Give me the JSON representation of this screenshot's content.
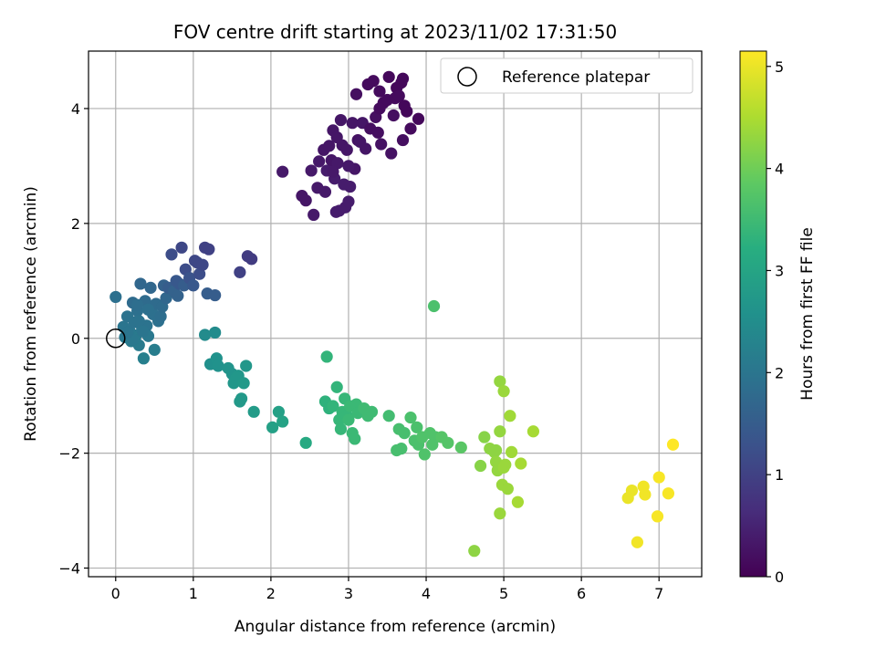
{
  "chart_data": {
    "type": "scatter",
    "title": "FOV centre drift starting at 2023/11/02 17:31:50",
    "xlabel": "Angular distance from reference (arcmin)",
    "ylabel": "Rotation from reference (arcmin)",
    "xlim": [
      -0.35,
      7.55
    ],
    "ylim": [
      -4.15,
      5.0
    ],
    "x_ticks": [
      0,
      1,
      2,
      3,
      4,
      5,
      6,
      7
    ],
    "y_ticks": [
      -4,
      -2,
      0,
      2,
      4
    ],
    "grid": true,
    "legend": {
      "placement": "top-right",
      "entries": [
        "Reference platepar"
      ]
    },
    "reference_point": {
      "x": 0,
      "y": 0,
      "label": "Reference platepar"
    },
    "colorbar": {
      "label": "Hours from first FF file",
      "colormap": "viridis",
      "range": [
        0,
        5.15
      ],
      "ticks": [
        0,
        1,
        2,
        3,
        4,
        5
      ]
    },
    "points": [
      [
        2.15,
        2.9,
        0.35
      ],
      [
        2.4,
        2.48,
        0.3
      ],
      [
        2.45,
        2.4,
        0.3
      ],
      [
        2.55,
        2.15,
        0.35
      ],
      [
        2.52,
        2.92,
        0.35
      ],
      [
        2.6,
        2.62,
        0.35
      ],
      [
        2.62,
        3.08,
        0.35
      ],
      [
        2.68,
        3.28,
        0.3
      ],
      [
        2.7,
        2.55,
        0.35
      ],
      [
        2.72,
        2.92,
        0.4
      ],
      [
        2.75,
        3.35,
        0.3
      ],
      [
        2.78,
        3.1,
        0.3
      ],
      [
        2.8,
        3.62,
        0.3
      ],
      [
        2.82,
        2.78,
        0.4
      ],
      [
        2.84,
        2.2,
        0.4
      ],
      [
        2.86,
        3.05,
        0.35
      ],
      [
        2.88,
        2.22,
        0.4
      ],
      [
        2.9,
        3.8,
        0.3
      ],
      [
        2.92,
        3.36,
        0.3
      ],
      [
        2.94,
        2.68,
        0.4
      ],
      [
        2.96,
        2.28,
        0.4
      ],
      [
        2.98,
        3.28,
        0.3
      ],
      [
        3.0,
        2.38,
        0.4
      ],
      [
        3.02,
        2.64,
        0.4
      ],
      [
        3.05,
        3.75,
        0.3
      ],
      [
        3.08,
        2.95,
        0.3
      ],
      [
        3.1,
        4.25,
        0.2
      ],
      [
        3.12,
        3.45,
        0.25
      ],
      [
        3.15,
        3.42,
        0.3
      ],
      [
        3.18,
        3.75,
        0.3
      ],
      [
        3.22,
        3.3,
        0.3
      ],
      [
        3.25,
        4.42,
        0.15
      ],
      [
        3.28,
        3.65,
        0.2
      ],
      [
        3.32,
        4.48,
        0.15
      ],
      [
        3.35,
        3.85,
        0.2
      ],
      [
        3.38,
        3.58,
        0.2
      ],
      [
        3.4,
        4.3,
        0.15
      ],
      [
        3.42,
        3.38,
        0.25
      ],
      [
        3.45,
        4.1,
        0.15
      ],
      [
        3.5,
        4.15,
        0.15
      ],
      [
        3.52,
        4.55,
        0.1
      ],
      [
        3.55,
        3.22,
        0.25
      ],
      [
        3.58,
        3.88,
        0.2
      ],
      [
        3.6,
        4.18,
        0.15
      ],
      [
        3.62,
        4.36,
        0.1
      ],
      [
        3.65,
        4.22,
        0.15
      ],
      [
        3.68,
        4.45,
        0.1
      ],
      [
        3.7,
        3.45,
        0.2
      ],
      [
        3.72,
        4.05,
        0.1
      ],
      [
        3.75,
        3.95,
        0.1
      ],
      [
        3.8,
        3.65,
        0.15
      ],
      [
        3.9,
        3.82,
        0.1
      ],
      [
        2.8,
        2.9,
        0.35
      ],
      [
        3.0,
        3.0,
        0.35
      ],
      [
        2.85,
        3.5,
        0.3
      ],
      [
        3.4,
        4.0,
        0.15
      ],
      [
        3.7,
        4.52,
        0.1
      ],
      [
        0.0,
        0.72,
        1.9
      ],
      [
        0.1,
        0.2,
        2.0
      ],
      [
        0.12,
        0.02,
        2.05
      ],
      [
        0.15,
        0.38,
        1.95
      ],
      [
        0.18,
        0.12,
        2.0
      ],
      [
        0.2,
        -0.05,
        2.1
      ],
      [
        0.22,
        0.62,
        1.8
      ],
      [
        0.24,
        0.28,
        1.95
      ],
      [
        0.26,
        0.05,
        2.05
      ],
      [
        0.28,
        0.48,
        1.9
      ],
      [
        0.3,
        -0.12,
        2.1
      ],
      [
        0.32,
        0.95,
        1.7
      ],
      [
        0.34,
        0.18,
        2.0
      ],
      [
        0.36,
        -0.35,
        2.2
      ],
      [
        0.38,
        0.65,
        1.8
      ],
      [
        0.4,
        0.22,
        1.95
      ],
      [
        0.42,
        0.04,
        2.05
      ],
      [
        0.45,
        0.88,
        1.7
      ],
      [
        0.48,
        0.42,
        1.9
      ],
      [
        0.5,
        -0.2,
        2.15
      ],
      [
        0.52,
        0.6,
        1.8
      ],
      [
        0.55,
        0.3,
        1.9
      ],
      [
        0.58,
        0.38,
        1.85
      ],
      [
        0.6,
        0.55,
        1.8
      ],
      [
        0.62,
        0.92,
        1.6
      ],
      [
        0.65,
        0.7,
        1.7
      ],
      [
        0.68,
        0.88,
        1.5
      ],
      [
        0.72,
        1.46,
        1.2
      ],
      [
        0.75,
        0.82,
        1.6
      ],
      [
        0.78,
        1.0,
        1.4
      ],
      [
        0.8,
        0.74,
        1.6
      ],
      [
        0.82,
        0.95,
        1.4
      ],
      [
        0.85,
        1.58,
        1.1
      ],
      [
        0.88,
        0.92,
        1.5
      ],
      [
        0.9,
        1.2,
        1.2
      ],
      [
        0.95,
        1.05,
        1.3
      ],
      [
        1.0,
        0.92,
        1.4
      ],
      [
        1.02,
        1.35,
        1.1
      ],
      [
        1.05,
        1.32,
        1.1
      ],
      [
        1.08,
        1.12,
        1.2
      ],
      [
        1.12,
        1.28,
        1.1
      ],
      [
        1.15,
        1.58,
        1.0
      ],
      [
        1.18,
        0.78,
        1.5
      ],
      [
        1.2,
        1.55,
        1.0
      ],
      [
        1.28,
        0.75,
        1.5
      ],
      [
        1.6,
        1.15,
        1.0
      ],
      [
        1.7,
        1.43,
        0.9
      ],
      [
        1.75,
        1.38,
        0.9
      ],
      [
        0.25,
        0.0,
        2.1
      ],
      [
        0.3,
        0.3,
        1.95
      ],
      [
        0.22,
        -0.02,
        2.05
      ],
      [
        0.35,
        0.12,
        2.0
      ],
      [
        0.28,
        0.58,
        1.85
      ],
      [
        0.15,
        0.1,
        2.0
      ],
      [
        0.42,
        0.5,
        1.9
      ],
      [
        1.15,
        0.06,
        2.45
      ],
      [
        1.28,
        0.1,
        2.45
      ],
      [
        1.22,
        -0.45,
        2.55
      ],
      [
        1.3,
        -0.35,
        2.6
      ],
      [
        1.32,
        -0.48,
        2.6
      ],
      [
        1.45,
        -0.52,
        2.65
      ],
      [
        1.5,
        -0.62,
        2.65
      ],
      [
        1.52,
        -0.78,
        2.7
      ],
      [
        1.55,
        -0.7,
        2.7
      ],
      [
        1.58,
        -0.65,
        2.7
      ],
      [
        1.62,
        -1.05,
        2.75
      ],
      [
        1.65,
        -0.78,
        2.75
      ],
      [
        1.68,
        -0.48,
        2.7
      ],
      [
        1.78,
        -1.28,
        2.8
      ],
      [
        1.6,
        -1.1,
        2.75
      ],
      [
        2.02,
        -1.55,
        2.9
      ],
      [
        2.1,
        -1.28,
        2.9
      ],
      [
        2.15,
        -1.45,
        2.95
      ],
      [
        2.45,
        -1.82,
        3.1
      ],
      [
        2.7,
        -1.1,
        3.3
      ],
      [
        2.72,
        -0.32,
        3.35
      ],
      [
        2.75,
        -1.22,
        3.3
      ],
      [
        2.8,
        -1.18,
        3.35
      ],
      [
        2.85,
        -0.85,
        3.35
      ],
      [
        2.88,
        -1.42,
        3.4
      ],
      [
        2.9,
        -1.58,
        3.4
      ],
      [
        2.92,
        -1.28,
        3.4
      ],
      [
        2.95,
        -1.05,
        3.4
      ],
      [
        2.98,
        -1.35,
        3.4
      ],
      [
        3.0,
        -1.42,
        3.45
      ],
      [
        3.02,
        -1.18,
        3.45
      ],
      [
        3.05,
        -1.65,
        3.45
      ],
      [
        3.08,
        -1.75,
        3.45
      ],
      [
        3.1,
        -1.15,
        3.45
      ],
      [
        3.12,
        -1.3,
        3.45
      ],
      [
        3.2,
        -1.22,
        3.5
      ],
      [
        3.25,
        -1.35,
        3.5
      ],
      [
        3.3,
        -1.28,
        3.5
      ],
      [
        3.52,
        -1.35,
        3.55
      ],
      [
        3.62,
        -1.95,
        3.6
      ],
      [
        3.65,
        -1.58,
        3.6
      ],
      [
        3.68,
        -1.92,
        3.6
      ],
      [
        3.72,
        -1.65,
        3.6
      ],
      [
        3.8,
        -1.38,
        3.65
      ],
      [
        3.85,
        -1.78,
        3.65
      ],
      [
        3.88,
        -1.55,
        3.65
      ],
      [
        3.9,
        -1.85,
        3.65
      ],
      [
        3.95,
        -1.72,
        3.7
      ],
      [
        3.98,
        -2.02,
        3.7
      ],
      [
        4.05,
        -1.65,
        3.7
      ],
      [
        4.08,
        -1.85,
        3.7
      ],
      [
        4.1,
        0.56,
        3.65
      ],
      [
        4.12,
        -1.72,
        3.7
      ],
      [
        4.2,
        -1.72,
        3.75
      ],
      [
        4.28,
        -1.82,
        3.75
      ],
      [
        4.45,
        -1.9,
        3.8
      ],
      [
        4.62,
        -3.7,
        4.25
      ],
      [
        4.7,
        -2.22,
        4.2
      ],
      [
        4.75,
        -1.72,
        4.2
      ],
      [
        4.82,
        -1.92,
        4.25
      ],
      [
        4.88,
        -1.98,
        4.25
      ],
      [
        4.9,
        -2.15,
        4.3
      ],
      [
        4.92,
        -2.3,
        4.3
      ],
      [
        4.95,
        -1.62,
        4.3
      ],
      [
        4.95,
        -0.75,
        4.3
      ],
      [
        4.95,
        -3.05,
        4.35
      ],
      [
        4.98,
        -2.55,
        4.35
      ],
      [
        5.0,
        -0.92,
        4.35
      ],
      [
        5.02,
        -2.2,
        4.35
      ],
      [
        5.05,
        -2.62,
        4.35
      ],
      [
        5.08,
        -1.35,
        4.4
      ],
      [
        5.1,
        -1.98,
        4.4
      ],
      [
        5.18,
        -2.85,
        4.45
      ],
      [
        5.22,
        -2.18,
        4.45
      ],
      [
        5.38,
        -1.62,
        4.45
      ],
      [
        4.9,
        -1.95,
        4.25
      ],
      [
        5.0,
        -2.25,
        4.35
      ],
      [
        6.6,
        -2.78,
        5.0
      ],
      [
        6.65,
        -2.65,
        5.0
      ],
      [
        6.72,
        -3.55,
        5.05
      ],
      [
        6.8,
        -2.58,
        5.05
      ],
      [
        6.82,
        -2.72,
        5.05
      ],
      [
        6.98,
        -3.1,
        5.1
      ],
      [
        7.0,
        -2.42,
        5.1
      ],
      [
        7.12,
        -2.7,
        5.1
      ],
      [
        7.18,
        -1.85,
        5.15
      ]
    ]
  }
}
